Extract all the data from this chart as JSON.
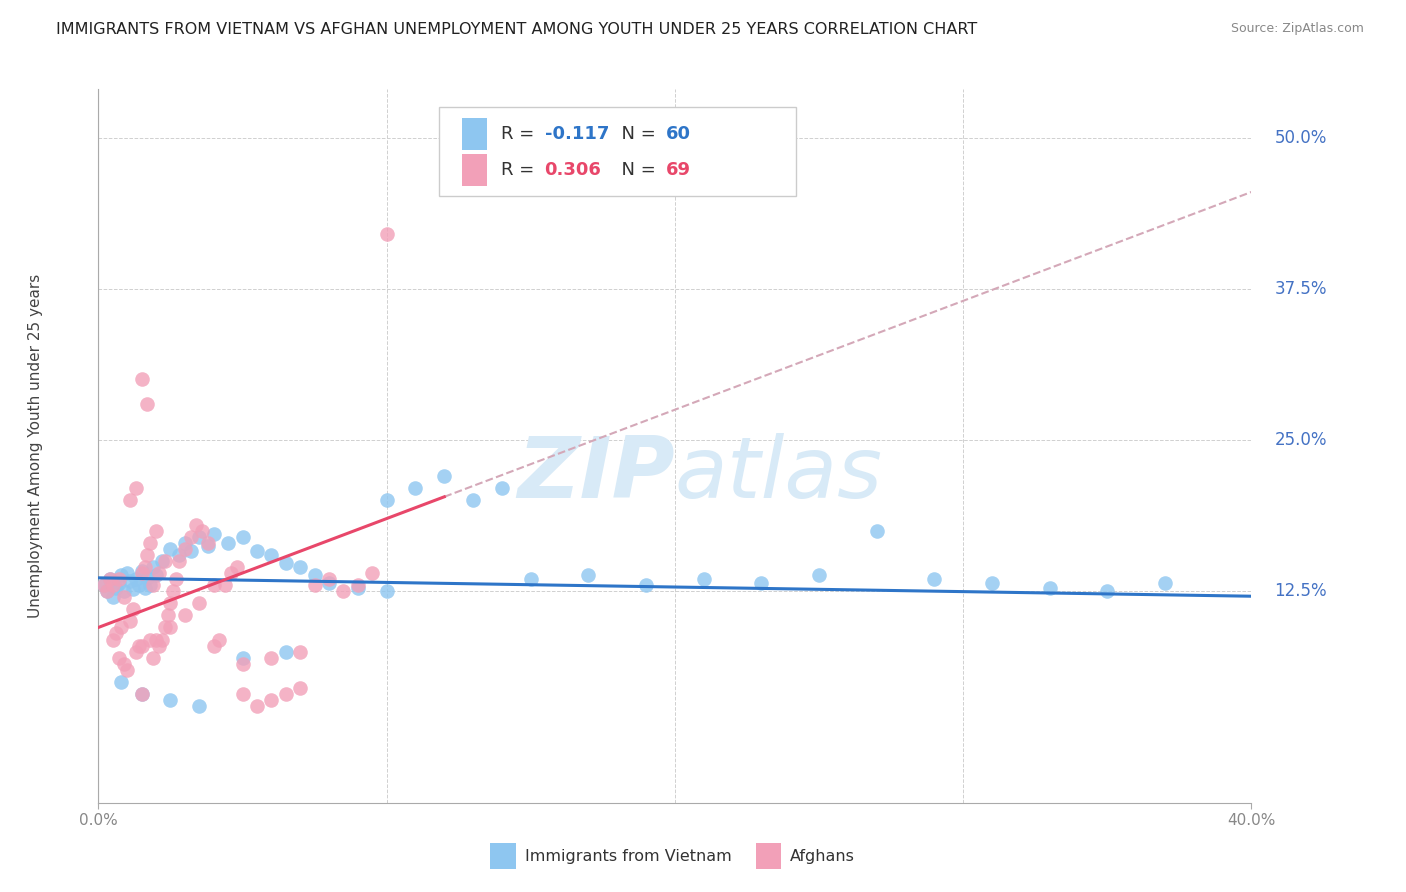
{
  "title": "IMMIGRANTS FROM VIETNAM VS AFGHAN UNEMPLOYMENT AMONG YOUTH UNDER 25 YEARS CORRELATION CHART",
  "source": "Source: ZipAtlas.com",
  "ylabel": "Unemployment Among Youth under 25 years",
  "right_yticks": [
    "50.0%",
    "37.5%",
    "25.0%",
    "12.5%"
  ],
  "right_ytick_values": [
    0.5,
    0.375,
    0.25,
    0.125
  ],
  "xlim": [
    0.0,
    0.4
  ],
  "ylim": [
    -0.05,
    0.54
  ],
  "blue_color": "#8EC6F0",
  "pink_color": "#F2A0B8",
  "blue_line_color": "#2E75C8",
  "pink_line_color": "#E8476A",
  "dashed_line_color": "#D4A8B8",
  "watermark_color": "#D8EAF7",
  "legend_blue_label": "Immigrants from Vietnam",
  "legend_pink_label": "Afghans",
  "R_blue": -0.117,
  "N_blue": 60,
  "R_pink": 0.306,
  "N_pink": 69,
  "blue_scatter_x": [
    0.002,
    0.003,
    0.004,
    0.005,
    0.006,
    0.007,
    0.008,
    0.009,
    0.01,
    0.011,
    0.012,
    0.013,
    0.014,
    0.015,
    0.016,
    0.017,
    0.018,
    0.019,
    0.02,
    0.022,
    0.025,
    0.028,
    0.03,
    0.032,
    0.035,
    0.038,
    0.04,
    0.045,
    0.05,
    0.055,
    0.06,
    0.065,
    0.07,
    0.075,
    0.08,
    0.09,
    0.1,
    0.11,
    0.12,
    0.13,
    0.15,
    0.17,
    0.19,
    0.21,
    0.23,
    0.25,
    0.27,
    0.29,
    0.31,
    0.33,
    0.35,
    0.37,
    0.008,
    0.015,
    0.025,
    0.035,
    0.05,
    0.065,
    0.1,
    0.14
  ],
  "blue_scatter_y": [
    0.13,
    0.125,
    0.135,
    0.12,
    0.128,
    0.132,
    0.138,
    0.125,
    0.14,
    0.133,
    0.127,
    0.135,
    0.13,
    0.142,
    0.128,
    0.136,
    0.13,
    0.145,
    0.138,
    0.15,
    0.16,
    0.155,
    0.165,
    0.158,
    0.17,
    0.162,
    0.172,
    0.165,
    0.17,
    0.158,
    0.155,
    0.148,
    0.145,
    0.138,
    0.132,
    0.128,
    0.125,
    0.21,
    0.22,
    0.2,
    0.135,
    0.138,
    0.13,
    0.135,
    0.132,
    0.138,
    0.175,
    0.135,
    0.132,
    0.128,
    0.125,
    0.132,
    0.05,
    0.04,
    0.035,
    0.03,
    0.07,
    0.075,
    0.2,
    0.21
  ],
  "pink_scatter_x": [
    0.002,
    0.003,
    0.004,
    0.005,
    0.006,
    0.007,
    0.008,
    0.009,
    0.01,
    0.011,
    0.012,
    0.013,
    0.014,
    0.015,
    0.016,
    0.017,
    0.018,
    0.019,
    0.02,
    0.021,
    0.022,
    0.023,
    0.024,
    0.025,
    0.026,
    0.027,
    0.028,
    0.03,
    0.032,
    0.034,
    0.036,
    0.038,
    0.04,
    0.042,
    0.044,
    0.046,
    0.048,
    0.05,
    0.055,
    0.06,
    0.065,
    0.07,
    0.075,
    0.08,
    0.085,
    0.09,
    0.095,
    0.1,
    0.005,
    0.007,
    0.009,
    0.011,
    0.013,
    0.015,
    0.017,
    0.019,
    0.021,
    0.023,
    0.015,
    0.018,
    0.025,
    0.03,
    0.035,
    0.04,
    0.05,
    0.06,
    0.07,
    0.015,
    0.02
  ],
  "pink_scatter_y": [
    0.13,
    0.125,
    0.135,
    0.085,
    0.09,
    0.07,
    0.095,
    0.065,
    0.06,
    0.1,
    0.11,
    0.075,
    0.08,
    0.14,
    0.145,
    0.155,
    0.165,
    0.07,
    0.175,
    0.08,
    0.085,
    0.095,
    0.105,
    0.115,
    0.125,
    0.135,
    0.15,
    0.16,
    0.17,
    0.18,
    0.175,
    0.165,
    0.08,
    0.085,
    0.13,
    0.14,
    0.145,
    0.04,
    0.03,
    0.035,
    0.04,
    0.045,
    0.13,
    0.135,
    0.125,
    0.13,
    0.14,
    0.42,
    0.13,
    0.135,
    0.12,
    0.2,
    0.21,
    0.3,
    0.28,
    0.13,
    0.14,
    0.15,
    0.08,
    0.085,
    0.095,
    0.105,
    0.115,
    0.13,
    0.065,
    0.07,
    0.075,
    0.04,
    0.085
  ],
  "background_color": "#FFFFFF",
  "grid_color": "#D0D0D0",
  "title_color": "#222222",
  "right_tick_color": "#4472C4",
  "source_color": "#888888",
  "ylabel_color": "#444444",
  "xtick_color": "#888888",
  "title_fontsize": 11.5,
  "source_fontsize": 9,
  "axis_fontsize": 11,
  "legend_fontsize": 13
}
